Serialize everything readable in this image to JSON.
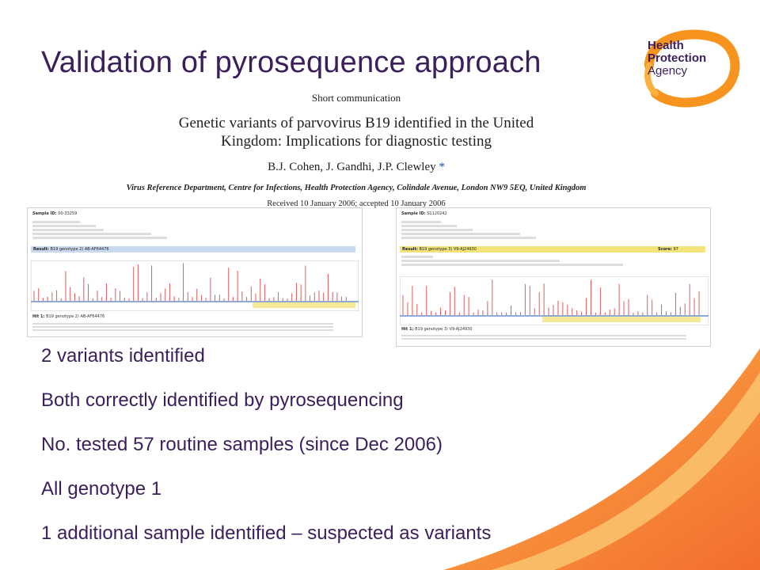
{
  "slide": {
    "title": "Validation of pyrosequence approach"
  },
  "logo": {
    "line1": "Health",
    "line2": "Protection",
    "line3": "Agency",
    "colors": {
      "text": "#3a1f5c",
      "ring": "#f7941d"
    }
  },
  "paper": {
    "section": "Short communication",
    "title_line1": "Genetic variants of parvovirus B19 identified in the United",
    "title_line2": "Kingdom: Implications for diagnostic testing",
    "authors": "B.J. Cohen, J. Gandhi, J.P. Clewley",
    "author_mark": "*",
    "affiliation": "Virus Reference Department, Centre for Infections, Health Protection Agency, Colindale Avenue, London NW9 5EQ, United Kingdom",
    "received": "Received 10 January 2006; accepted 10 January 2006"
  },
  "screenshots": {
    "left": {
      "sample_label": "Sample ID:",
      "sample_id": "00-33259",
      "result_label": "Result:",
      "result_value": "B19 genotype 2) AB-AF64476",
      "hit_label": "Hit 1:",
      "hit_value": "B19 genotype 2) AB-AF64476"
    },
    "right": {
      "sample_label": "Sample ID:",
      "sample_id": "S1120242",
      "result_label": "Result:",
      "result_value": "B19 genotype 3) V9-AJ24930",
      "score_label": "Score:",
      "score_value": "97",
      "hit_label": "Hit 1:",
      "hit_value": "B19 genotype 3) V9-AJ24930"
    }
  },
  "bullets": [
    "2 variants identified",
    "Both correctly identified by pyrosequencing",
    "No. tested 57 routine samples (since Dec 2006)",
    "All genotype 1",
    "1 additional sample identified – suspected as variants"
  ],
  "colors": {
    "title": "#3a1f5c",
    "accent": "#f7941d",
    "peak": "#e05a5a"
  }
}
